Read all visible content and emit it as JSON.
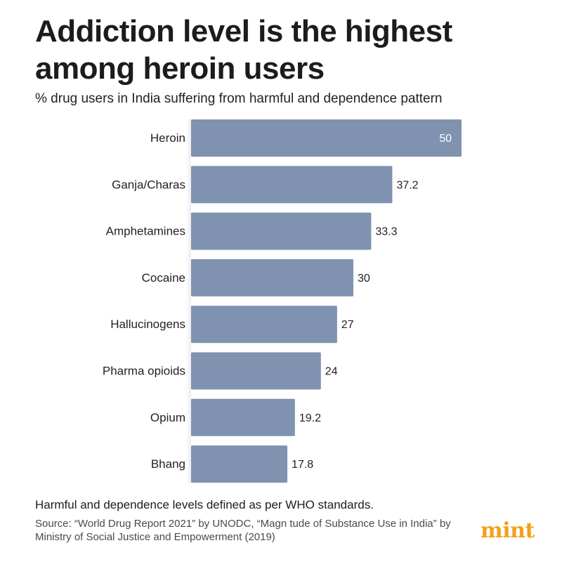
{
  "title": "Addiction level is the highest among heroin users",
  "subtitle": "% drug users in India suffering from harmful and dependence pattern",
  "footnote": "Harmful and dependence levels defined as per WHO standards.",
  "source": "Source: “World Drug Report 2021” by UNODC, “Magn tude of Substance Use in India” by Ministry of Social Justice and Empowerment (2019)",
  "brand": "mint",
  "colors": {
    "bar": "#7f93b1",
    "bar_edge": "#6d809c",
    "brand": "#f5a01a",
    "axis_shade": "#d8dde6"
  },
  "chart_data": {
    "type": "bar",
    "orientation": "horizontal",
    "title": "Addiction level is the highest among heroin users",
    "subtitle": "% drug users in India suffering from harmful and dependence pattern",
    "xlabel": "",
    "ylabel": "",
    "categories": [
      "Heroin",
      "Ganja/Charas",
      "Amphetamines",
      "Cocaine",
      "Hallucinogens",
      "Pharma opioids",
      "Opium",
      "Bhang"
    ],
    "values": [
      50,
      37.2,
      33.3,
      30,
      27,
      24,
      19.2,
      17.8
    ],
    "value_labels": [
      "50",
      "37.2",
      "33.3",
      "30",
      "27",
      "24",
      "19.2",
      "17.8"
    ],
    "xlim": [
      0,
      50
    ],
    "grid": false,
    "legend": "none"
  }
}
